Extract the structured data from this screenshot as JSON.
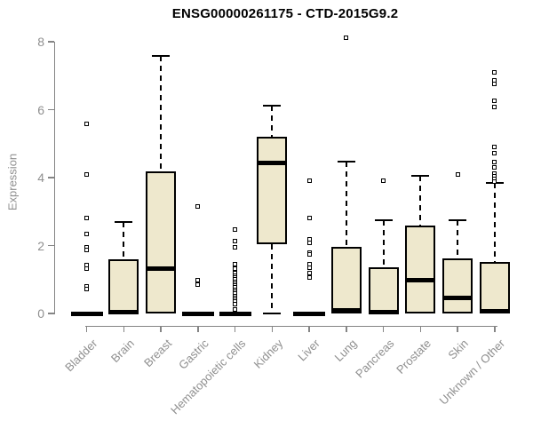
{
  "chart_data": {
    "type": "boxplot",
    "title": "ENSG00000261175 - CTD-2015G9.2",
    "ylabel": "Expression",
    "xlabel": "",
    "ylim": [
      0,
      8
    ],
    "yticks": [
      0,
      2,
      4,
      6,
      8
    ],
    "grid": false,
    "legend": false,
    "categories": [
      "Bladder",
      "Brain",
      "Breast",
      "Gastric",
      "Hematopoietic cells",
      "Kidney",
      "Liver",
      "Lung",
      "Pancreas",
      "Prostate",
      "Skin",
      "Unknown / Other"
    ],
    "boxes": [
      {
        "category": "Bladder",
        "q1": 0,
        "median": 0,
        "q3": 0,
        "whisker_low": 0,
        "whisker_high": 0,
        "flat": true,
        "outliers": [
          5.57,
          4.1,
          2.8,
          2.33,
          1.96,
          1.86,
          1.42,
          1.33,
          0.81,
          0.71
        ]
      },
      {
        "category": "Brain",
        "q1": 0,
        "median": 0.04,
        "q3": 1.59,
        "whisker_low": 0,
        "whisker_high": 2.69,
        "flat": false,
        "outliers": []
      },
      {
        "category": "Breast",
        "q1": 0,
        "median": 1.31,
        "q3": 4.18,
        "whisker_low": 0,
        "whisker_high": 7.58,
        "flat": false,
        "outliers": []
      },
      {
        "category": "Gastric",
        "q1": 0,
        "median": 0,
        "q3": 0,
        "whisker_low": 0,
        "whisker_high": 0,
        "flat": true,
        "outliers": [
          3.16,
          0.99,
          0.86
        ]
      },
      {
        "category": "Hematopoietic cells",
        "q1": 0,
        "median": 0,
        "q3": 0,
        "whisker_low": 0,
        "whisker_high": 0,
        "flat": true,
        "outliers": [
          2.48,
          2.12,
          1.96,
          1.46,
          1.33,
          1.18,
          1.12,
          1.06,
          1.0,
          0.94,
          0.88,
          0.82,
          0.76,
          0.7,
          0.64,
          0.58,
          0.52,
          0.46,
          0.4,
          0.34,
          0.28,
          0.13
        ]
      },
      {
        "category": "Kidney",
        "q1": 2.04,
        "median": 4.44,
        "q3": 5.2,
        "whisker_low": 0,
        "whisker_high": 6.12,
        "flat": false,
        "outliers": []
      },
      {
        "category": "Liver",
        "q1": 0,
        "median": 0,
        "q3": 0,
        "whisker_low": 0,
        "whisker_high": 0,
        "flat": true,
        "outliers": [
          3.92,
          2.82,
          2.18,
          2.08,
          1.8,
          1.73,
          1.46,
          1.35,
          1.2,
          1.05
        ]
      },
      {
        "category": "Lung",
        "q1": 0,
        "median": 0.1,
        "q3": 1.96,
        "whisker_low": 0,
        "whisker_high": 4.47,
        "flat": false,
        "outliers": [
          8.13
        ]
      },
      {
        "category": "Pancreas",
        "q1": 0,
        "median": 0.05,
        "q3": 1.36,
        "whisker_low": 0,
        "whisker_high": 2.75,
        "flat": false,
        "outliers": [
          3.9
        ]
      },
      {
        "category": "Prostate",
        "q1": 0,
        "median": 0.99,
        "q3": 2.59,
        "whisker_low": 0,
        "whisker_high": 4.05,
        "flat": false,
        "outliers": []
      },
      {
        "category": "Skin",
        "q1": 0,
        "median": 0.47,
        "q3": 1.62,
        "whisker_low": 0,
        "whisker_high": 2.75,
        "flat": false,
        "outliers": [
          4.08
        ]
      },
      {
        "category": "Unknown / Other",
        "q1": 0,
        "median": 0.06,
        "q3": 1.52,
        "whisker_low": 0,
        "whisker_high": 3.84,
        "flat": false,
        "outliers": [
          7.11,
          6.85,
          6.75,
          6.27,
          6.07,
          4.91,
          4.71,
          4.47,
          4.31,
          4.13,
          4.04,
          3.96,
          3.88
        ]
      }
    ],
    "colors": {
      "box_fill": "#EEE8CD",
      "box_border": "#000000",
      "median": "#000000",
      "axis": "#858585",
      "tick_label": "#8f8f8f",
      "title": "#000000",
      "background": "#ffffff"
    }
  }
}
